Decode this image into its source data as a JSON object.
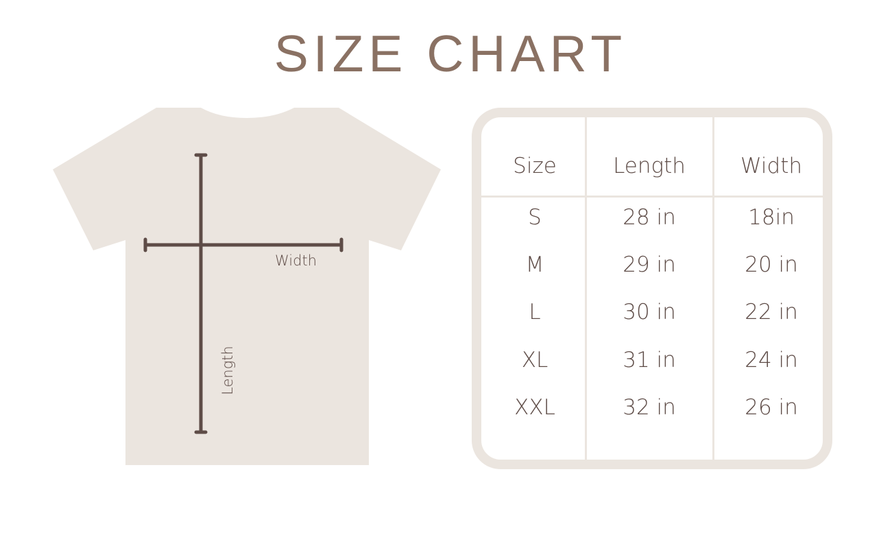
{
  "title": "SIZE CHART",
  "diagram": {
    "width_label": "Width",
    "length_label": "Length",
    "shirt_color": "#ebe5df",
    "measure_color": "#5e4c47"
  },
  "table": {
    "headers": [
      "Size",
      "Length",
      "Width"
    ],
    "rows": [
      [
        "S",
        "28 in",
        "18in"
      ],
      [
        "M",
        "29 in",
        "20 in"
      ],
      [
        "L",
        "30 in",
        "22 in"
      ],
      [
        "XL",
        "31 in",
        "24 in"
      ],
      [
        "XXL",
        "32 in",
        "26 in"
      ]
    ],
    "border_color": "#ebe5df",
    "text_color": "#5e4c47"
  },
  "title_color": "#8a7163"
}
